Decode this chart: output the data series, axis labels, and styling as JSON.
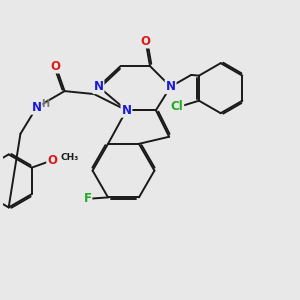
{
  "bg_color": "#e8e8e8",
  "bond_color": "#1a1a1a",
  "bond_width": 1.4,
  "dbo": 0.055,
  "atom_colors": {
    "N": "#1a1add",
    "O": "#dd1a1a",
    "F": "#20aa20",
    "Cl": "#20aa20",
    "H": "#777777",
    "C": "#1a1a1a"
  },
  "fs": 8.5,
  "fs2": 7.0
}
